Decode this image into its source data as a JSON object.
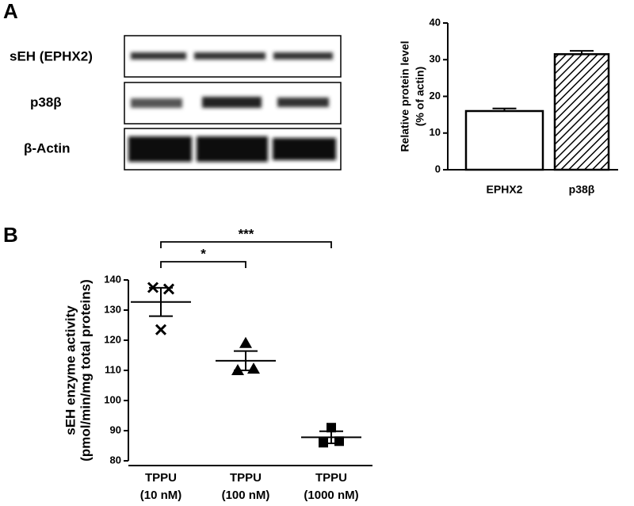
{
  "panel_labels": [
    "A",
    "B"
  ],
  "blot": {
    "rows": [
      "sEH (EPHX2)",
      "p38β",
      "β-Actin"
    ]
  },
  "chart_data": [
    {
      "type": "bar",
      "categories": [
        "EPHX2",
        "p38β"
      ],
      "values": [
        16,
        31.5
      ],
      "errors": [
        0.7,
        0.9
      ],
      "hatched": [
        false,
        true
      ],
      "color": "#000000",
      "ylabel": [
        "Relative protein level",
        "(% of actin)"
      ],
      "ylim": [
        0,
        40
      ],
      "yticks": [
        0,
        10,
        20,
        30,
        40
      ]
    },
    {
      "type": "dot",
      "categories": [
        [
          "TPPU",
          "(10 nM)"
        ],
        [
          "TPPU",
          "(100 nM)"
        ],
        [
          "TPPU",
          "(1000 nM)"
        ]
      ],
      "groups": [
        {
          "marker": "cross",
          "values": [
            137.5,
            123.5,
            137
          ]
        },
        {
          "marker": "triangle",
          "values": [
            110,
            119,
            110.5
          ]
        },
        {
          "marker": "square",
          "values": [
            86,
            91,
            86.5
          ]
        }
      ],
      "means": [
        132.7,
        113.2,
        87.8
      ],
      "sems": [
        4.7,
        3.2,
        2
      ],
      "ylabel": [
        "sEH enzyme activity",
        "(pmol/min/mg total proteins)"
      ],
      "ylim": [
        80,
        140
      ],
      "yticks": [
        80,
        90,
        100,
        110,
        120,
        130,
        140
      ],
      "annotations": [
        {
          "text": "*",
          "from": 0,
          "to": 1
        },
        {
          "text": "***",
          "from": 0,
          "to": 2
        }
      ]
    }
  ]
}
